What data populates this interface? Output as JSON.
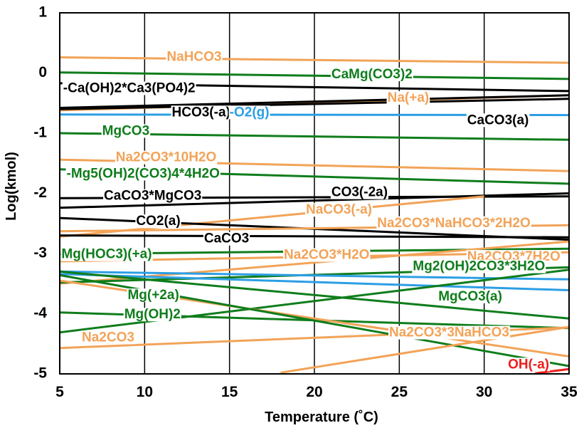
{
  "chart_data": {
    "type": "line",
    "title": "",
    "xlabel": "Temperature (˚C)",
    "ylabel": "Log(kmol)",
    "xlim": [
      5,
      35
    ],
    "ylim": [
      -5,
      1
    ],
    "xticks": [
      5,
      10,
      15,
      20,
      25,
      30,
      35
    ],
    "yticks": [
      1,
      0,
      -1,
      -2,
      -3,
      -4,
      -5
    ],
    "ytick_labels": [
      "1",
      "0",
      "-1",
      "-2",
      "-3",
      "-4",
      "-5"
    ],
    "grid": "vertical",
    "legend": "none",
    "colors": {
      "orange": "#f2a358",
      "green": "#0f7d1c",
      "black": "#000000",
      "blue": "#2c9ee4",
      "red": "#ee1c1c"
    },
    "series": [
      {
        "name": "NaHCO3",
        "color": "#f2a358",
        "x": [
          5,
          35
        ],
        "y": [
          0.26,
          0.17
        ]
      },
      {
        "name": "CaMg(CO3)2",
        "color": "#0f7d1c",
        "x": [
          5,
          35
        ],
        "y": [
          0.01,
          -0.1
        ]
      },
      {
        "name": "Ca(OH)2*Ca3(PO4)2",
        "color": "#000000",
        "x": [
          5,
          35
        ],
        "y": [
          -0.17,
          -0.3
        ]
      },
      {
        "name": "Na(+a)",
        "color": "#f2a358",
        "x": [
          5,
          35
        ],
        "y": [
          -0.62,
          -0.37
        ]
      },
      {
        "name": "HCO3(-a)",
        "color": "#000000",
        "x": [
          5,
          35
        ],
        "y": [
          -0.58,
          -0.37
        ]
      },
      {
        "name": "O2(g)",
        "color": "#2c9ee4",
        "x": [
          5,
          35
        ],
        "y": [
          -0.69,
          -0.7
        ]
      },
      {
        "name": "CaCO3(a)",
        "color": "#000000",
        "x": [
          5,
          35
        ],
        "y": [
          -0.6,
          -0.43
        ]
      },
      {
        "name": "MgCO3",
        "color": "#0f7d1c",
        "x": [
          5,
          35
        ],
        "y": [
          -1.0,
          -1.11
        ]
      },
      {
        "name": "Na2CO3*10H2O",
        "color": "#f2a358",
        "x": [
          5,
          35
        ],
        "y": [
          -1.44,
          -1.63
        ]
      },
      {
        "name": "Mg5(OH)2(CO3)4*4H2O",
        "color": "#0f7d1c",
        "x": [
          5,
          35
        ],
        "y": [
          -1.6,
          -1.84
        ]
      },
      {
        "name": "CaCO3*MgCO3",
        "color": "#000000",
        "x": [
          5,
          35
        ],
        "y": [
          -2.08,
          -2.05
        ]
      },
      {
        "name": "CO3(-2a)",
        "color": "#000000",
        "x": [
          5,
          35
        ],
        "y": [
          -2.24,
          -2.0
        ]
      },
      {
        "name": "NaCO3(-a)",
        "color": "#f2a358",
        "x": [
          5,
          30
        ],
        "y": [
          -2.72,
          -2.05
        ]
      },
      {
        "name": "CO2(a)",
        "color": "#000000",
        "x": [
          5,
          35
        ],
        "y": [
          -2.41,
          -2.77
        ]
      },
      {
        "name": "Na2CO3*NaHCO3*2H2O",
        "color": "#f2a358",
        "x": [
          5,
          35
        ],
        "y": [
          -2.63,
          -2.53
        ]
      },
      {
        "name": "CaCO3",
        "color": "#000000",
        "x": [
          5,
          35
        ],
        "y": [
          -2.7,
          -2.73
        ]
      },
      {
        "name": "Mg(HOC3)(+a)",
        "color": "#0f7d1c",
        "x": [
          5,
          35
        ],
        "y": [
          -3.01,
          -2.92
        ]
      },
      {
        "name": "Na2CO3*H2O",
        "color": "#f2a358",
        "x": [
          5,
          35
        ],
        "y": [
          -3.5,
          -2.8
        ]
      },
      {
        "name": "Na2CO3*7H2O",
        "color": "#f2a358",
        "x": [
          5,
          35
        ],
        "y": [
          -3.13,
          -2.98
        ]
      },
      {
        "name": "Mg2(OH)2CO3*3H2O",
        "color": "#0f7d1c",
        "x": [
          5,
          35
        ],
        "y": [
          -3.48,
          -3.23
        ]
      },
      {
        "name": "",
        "color": "#2c9ee4",
        "x": [
          5,
          35
        ],
        "y": [
          -3.3,
          -3.43
        ]
      },
      {
        "name": "",
        "color": "#2c9ee4",
        "x": [
          5,
          35
        ],
        "y": [
          -3.34,
          -3.61
        ]
      },
      {
        "name": "Mg(+2a)",
        "color": "#0f7d1c",
        "x": [
          5,
          35
        ],
        "y": [
          -3.3,
          -4.08
        ]
      },
      {
        "name": "MgCO3(a)",
        "color": "#0f7d1c",
        "x": [
          5,
          35
        ],
        "y": [
          -4.31,
          -3.27
        ]
      },
      {
        "name": "Mg(OH)2",
        "color": "#0f7d1c",
        "x": [
          5,
          35
        ],
        "y": [
          -3.98,
          -4.24
        ]
      },
      {
        "name": "Na2CO3*3NaHCO3",
        "color": "#f2a358",
        "x": [
          5,
          35
        ],
        "y": [
          -4.57,
          -4.23
        ]
      },
      {
        "name": "Na2CO3",
        "color": "#f2a358",
        "x": [
          5,
          35
        ],
        "y": [
          -3.45,
          -4.71
        ]
      },
      {
        "name": "OH(-a)",
        "color": "#0f7d1c",
        "x": [
          5,
          35
        ],
        "y": [
          -3.36,
          -4.87
        ]
      },
      {
        "name": "",
        "color": "#f2a358",
        "x": [
          18,
          35
        ],
        "y": [
          -4.98,
          -4.22
        ]
      },
      {
        "name": "OH(-a)",
        "color": "#ee1c1c",
        "x": [
          33,
          35
        ],
        "y": [
          -4.99,
          -4.92
        ]
      }
    ],
    "annotations": [
      {
        "text": "NaHCO3",
        "color": "#f2a358",
        "x": 11.3,
        "y": 0.26
      },
      {
        "text": "CaMg(CO3)2",
        "color": "#0f7d1c",
        "x": 21.0,
        "y": -0.03
      },
      {
        "text": "-Ca(OH)2*Ca3(PO4)2",
        "color": "#000000",
        "x": 5.2,
        "y": -0.26
      },
      {
        "text": "Na(+a)",
        "color": "#f2a358",
        "x": 24.3,
        "y": -0.42
      },
      {
        "text": "HCO3(-a)",
        "color": "#000000",
        "x": 11.6,
        "y": -0.66
      },
      {
        "text": "-O2(g)",
        "color": "#2c9ee4",
        "x": 15.0,
        "y": -0.66
      },
      {
        "text": "CaCO3(a)",
        "color": "#000000",
        "x": 29.0,
        "y": -0.79
      },
      {
        "text": "MgCO3",
        "color": "#0f7d1c",
        "x": 7.5,
        "y": -0.97
      },
      {
        "text": "Na2CO3*10H2O",
        "color": "#f2a358",
        "x": 8.3,
        "y": -1.41
      },
      {
        "text": "-Mg5(OH)2(CO3)4*4H2O",
        "color": "#0f7d1c",
        "x": 5.4,
        "y": -1.68
      },
      {
        "text": "CaCO3*MgCO3",
        "color": "#000000",
        "x": 7.6,
        "y": -2.05
      },
      {
        "text": "CO3(-2a)",
        "color": "#000000",
        "x": 21.0,
        "y": -1.99
      },
      {
        "text": "NaCO3(-a)",
        "color": "#f2a358",
        "x": 19.5,
        "y": -2.28
      },
      {
        "text": "CO2(a)",
        "color": "#000000",
        "x": 9.5,
        "y": -2.47
      },
      {
        "text": "Na2CO3*NaHCO3*2H2O",
        "color": "#f2a358",
        "x": 23.7,
        "y": -2.5
      },
      {
        "text": "CaCO3",
        "color": "#000000",
        "x": 13.5,
        "y": -2.76
      },
      {
        "text": "Mg(HOC3)(+a)",
        "color": "#0f7d1c",
        "x": 5.1,
        "y": -3.02
      },
      {
        "text": "Na2CO3*H2O",
        "color": "#f2a358",
        "x": 18.2,
        "y": -3.03
      },
      {
        "text": "Na2CO3*7H2O",
        "color": "#f2a358",
        "x": 29.0,
        "y": -3.06
      },
      {
        "text": "Mg2(OH)2CO3*3H2O",
        "color": "#0f7d1c",
        "x": 25.8,
        "y": -3.22
      },
      {
        "text": "Mg(+2a)",
        "color": "#0f7d1c",
        "x": 9.0,
        "y": -3.7
      },
      {
        "text": "MgCO3(a)",
        "color": "#0f7d1c",
        "x": 27.3,
        "y": -3.72
      },
      {
        "text": "Mg(OH)2",
        "color": "#0f7d1c",
        "x": 8.8,
        "y": -4.02
      },
      {
        "text": "Na2CO3*3NaHCO3",
        "color": "#f2a358",
        "x": 24.4,
        "y": -4.32
      },
      {
        "text": "Na2CO3",
        "color": "#f2a358",
        "x": 6.3,
        "y": -4.4
      },
      {
        "text": "OH(-a)",
        "color": "#ee1c1c",
        "x": 31.4,
        "y": -4.85
      }
    ]
  }
}
